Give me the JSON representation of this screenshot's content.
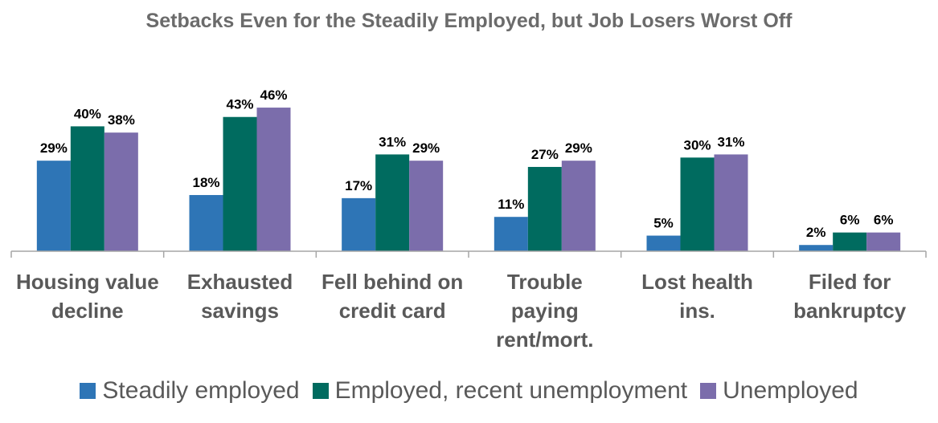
{
  "chart_data": {
    "type": "bar",
    "title": "Setbacks Even for the Steadily Employed, but Job Losers Worst Off",
    "categories": [
      [
        "Housing value",
        "decline"
      ],
      [
        "Exhausted",
        "savings"
      ],
      [
        "Fell behind on",
        "credit card"
      ],
      [
        "Trouble",
        "paying",
        "rent/mort."
      ],
      [
        "Lost health",
        "ins."
      ],
      [
        "Filed for",
        "bankruptcy"
      ]
    ],
    "series": [
      {
        "name": "Steadily employed",
        "color": "#2e75b6",
        "values": [
          29,
          18,
          17,
          11,
          5,
          2
        ]
      },
      {
        "name": "Employed, recent unemployment",
        "color": "#006b5f",
        "values": [
          40,
          43,
          31,
          27,
          30,
          6
        ]
      },
      {
        "name": "Unemployed",
        "color": "#7b6dab",
        "values": [
          38,
          46,
          29,
          29,
          31,
          6
        ]
      }
    ],
    "value_suffix": "%",
    "xlabel": "",
    "ylabel": "",
    "ylim": [
      0,
      50
    ],
    "legend_position": "bottom"
  }
}
